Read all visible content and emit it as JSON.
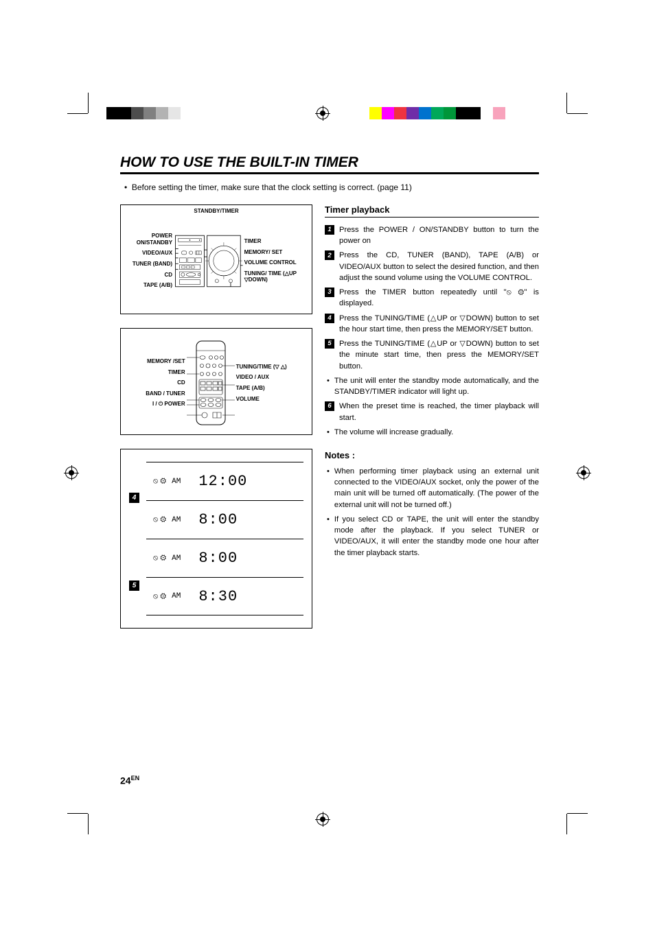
{
  "page": {
    "number": "24",
    "lang": "EN"
  },
  "title": "HOW TO USE THE BUILT-IN TIMER",
  "intro": "Before setting the timer, make sure that the clock setting is correct. (page 11)",
  "colorbar": {
    "left": [
      "#000000",
      "#000000",
      "#4d4d4d",
      "#808080",
      "#b3b3b3",
      "#e6e6e6",
      "#ffffff",
      "#ffffff",
      "#ffffff",
      "#ffffff",
      "#ffffff",
      "#ffffff"
    ],
    "right": [
      "#ffffff",
      "#ffff00",
      "#ff00ff",
      "#ef3340",
      "#6f2da8",
      "#0072ce",
      "#00a859",
      "#009639",
      "#000000",
      "#000000",
      "#ffffff",
      "#f8a3bc",
      "#ffffff"
    ]
  },
  "diagram1": {
    "top_label": "STANDBY/TIMER",
    "left": [
      "POWER ON/STANDBY",
      "VIDEO/AUX",
      "TUNER (BAND)",
      "CD",
      "TAPE (A/B)"
    ],
    "right": [
      "TIMER",
      "MEMORY/ SET",
      "VOLUME CONTROL",
      "TUNING/ TIME (△UP ▽DOWN)"
    ]
  },
  "diagram2": {
    "left": [
      "MEMORY /SET",
      "TIMER",
      "CD",
      "BAND / TUNER",
      "I / ⏻ POWER"
    ],
    "right": [
      "TUNING/TIME (▽  △)",
      "VIDEO / AUX",
      "TAPE (A/B)",
      "VOLUME"
    ]
  },
  "lcd_steps": {
    "nums": [
      "4",
      "5"
    ],
    "rows": [
      {
        "band": "AM",
        "time": "12:00"
      },
      {
        "band": "AM",
        "time": " 8:00"
      },
      {
        "band": "AM",
        "time": " 8:00"
      },
      {
        "band": "AM",
        "time": " 8:30"
      }
    ]
  },
  "playback": {
    "heading": "Timer playback",
    "steps": [
      "Press the POWER / ON/STANDBY button to turn the power on",
      "Press the CD, TUNER (BAND), TAPE (A/B) or VIDEO/AUX button to select the desired function, and then adjust the sound volume using the VOLUME CONTROL.",
      "Press the TIMER button repeatedly until \"⦸ ⚙\" is displayed.",
      "Press the TUNING/TIME (△UP or ▽DOWN) button to set the hour start time, then press the MEMORY/SET button.",
      "Press the TUNING/TIME (△UP or ▽DOWN) button to set the minute start time, then press the MEMORY/SET button."
    ],
    "sub_bullets_a": [
      "The unit will enter the standby mode automatically, and the STANDBY/TIMER indicator will light up."
    ],
    "step6": "When the preset time is reached, the timer playback will start.",
    "sub_bullets_b": [
      "The volume will increase gradually."
    ]
  },
  "notes": {
    "heading": "Notes :",
    "items": [
      "When performing timer playback using an external unit connected to the VIDEO/AUX socket, only the power of the main unit will be turned off automatically. (The power of the external unit will not be turned off.)",
      "If you select CD or TAPE, the unit will enter the standby mode after the playback. If you select TUNER or VIDEO/AUX, it will enter the standby mode one hour after the timer playback starts."
    ]
  }
}
